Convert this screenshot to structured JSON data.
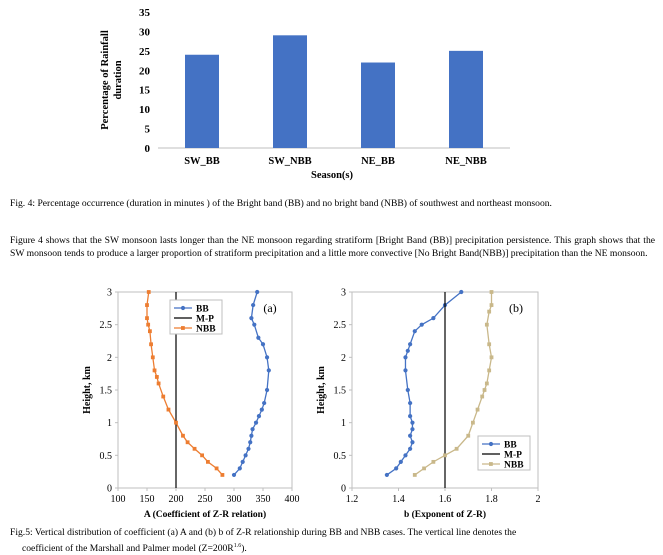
{
  "fig4": {
    "chart_data": {
      "type": "bar",
      "categories": [
        "SW_BB",
        "SW_NBB",
        "NE_BB",
        "NE_NBB"
      ],
      "values": [
        24,
        29,
        22,
        25
      ],
      "ylim": [
        0,
        35
      ],
      "yticks": [
        "0",
        "5",
        "10",
        "15",
        "20",
        "25",
        "30",
        "35"
      ],
      "ylabel_line1": "Percentage of Rainfall",
      "ylabel_line2": "duration",
      "xlabel": "Season(s)",
      "bar_color": "#4472C4",
      "grid": false
    },
    "caption": "Fig. 4: Percentage occurrence (duration in minutes ) of the Bright band (BB) and no bright band (NBB) of southwest and northeast monsoon.",
    "paragraph_1": "Figure 4 shows that the SW monsoon lasts longer than the NE monsoon regarding stratiform [Bright Band (BB)] precipitation persistence. This graph shows that the SW monsoon tends to produce a larger proportion of stratiform precipitation and a little more convective [No Bright Band(NBB)] precipitation than the NE monsoon."
  },
  "fig5a": {
    "chart_data": {
      "type": "line",
      "panel_label": "(a)",
      "xlim": [
        100,
        400
      ],
      "ylim": [
        0,
        3
      ],
      "xticks": [
        "100",
        "150",
        "200",
        "250",
        "300",
        "350",
        "400"
      ],
      "yticks": [
        "0",
        "0.5",
        "1",
        "1.5",
        "2",
        "2.5",
        "3"
      ],
      "xlabel": "A (Coefficient of Z-R relation)",
      "ylabel": "Height, km",
      "series": [
        {
          "name": "BB",
          "color": "#4472C4",
          "marker": "circle",
          "x": [
            300,
            310,
            315,
            320,
            325,
            328,
            330,
            332,
            338,
            343,
            348,
            352,
            357,
            360,
            357,
            350,
            342,
            335,
            330,
            333,
            340
          ],
          "y": [
            0.2,
            0.3,
            0.4,
            0.5,
            0.6,
            0.7,
            0.8,
            0.9,
            1.0,
            1.1,
            1.2,
            1.3,
            1.5,
            1.8,
            2.0,
            2.2,
            2.3,
            2.5,
            2.6,
            2.8,
            3.0
          ]
        },
        {
          "name": "M-P",
          "color": "#000000",
          "marker": "none",
          "x": [
            200,
            200
          ],
          "y": [
            0,
            3
          ]
        },
        {
          "name": "NBB",
          "color": "#ED7D31",
          "marker": "square",
          "x": [
            280,
            270,
            255,
            245,
            232,
            220,
            212,
            200,
            187,
            178,
            170,
            167,
            163,
            160,
            157,
            155,
            152,
            150,
            150,
            153
          ],
          "y": [
            0.2,
            0.3,
            0.4,
            0.5,
            0.6,
            0.7,
            0.8,
            1.0,
            1.2,
            1.4,
            1.6,
            1.7,
            1.8,
            2.0,
            2.2,
            2.4,
            2.5,
            2.6,
            2.8,
            3.0
          ]
        }
      ]
    }
  },
  "fig5b": {
    "chart_data": {
      "type": "line",
      "panel_label": "(b)",
      "xlim": [
        1.2,
        2.0
      ],
      "ylim": [
        0,
        3
      ],
      "xticks": [
        "1.2",
        "1.4",
        "1.6",
        "1.8",
        "2"
      ],
      "yticks": [
        "0",
        "0.5",
        "1",
        "1.5",
        "2",
        "2.5",
        "3"
      ],
      "xlabel": "b (Exponent of Z-R)",
      "ylabel": "Height, km",
      "series": [
        {
          "name": "BB",
          "color": "#4472C4",
          "marker": "circle",
          "x": [
            1.35,
            1.39,
            1.41,
            1.43,
            1.45,
            1.46,
            1.45,
            1.46,
            1.46,
            1.45,
            1.45,
            1.44,
            1.43,
            1.43,
            1.44,
            1.45,
            1.47,
            1.5,
            1.55,
            1.6,
            1.67
          ],
          "y": [
            0.2,
            0.3,
            0.4,
            0.5,
            0.6,
            0.7,
            0.8,
            0.9,
            1.0,
            1.1,
            1.3,
            1.5,
            1.8,
            2.0,
            2.1,
            2.2,
            2.4,
            2.5,
            2.6,
            2.8,
            3.0
          ]
        },
        {
          "name": "M-P",
          "color": "#000000",
          "marker": "none",
          "x": [
            1.6,
            1.6
          ],
          "y": [
            0,
            3
          ]
        },
        {
          "name": "NBB",
          "color": "#C9B88A",
          "marker": "square",
          "x": [
            1.47,
            1.51,
            1.55,
            1.6,
            1.65,
            1.7,
            1.72,
            1.74,
            1.76,
            1.77,
            1.78,
            1.79,
            1.8,
            1.79,
            1.78,
            1.79,
            1.8,
            1.8
          ],
          "y": [
            0.2,
            0.3,
            0.4,
            0.5,
            0.6,
            0.8,
            1.0,
            1.2,
            1.4,
            1.5,
            1.6,
            1.8,
            2.0,
            2.2,
            2.5,
            2.7,
            2.8,
            3.0
          ]
        }
      ]
    }
  },
  "fig5_caption_line1": "Fig.5: Vertical distribution of coefficient (a) A and (b) b of Z-R relationship during BB and NBB cases. The vertical line denotes the",
  "fig5_caption_line2_prefix": "coefficient of the Marshall and Palmer model (Z=200R",
  "fig5_caption_sup": "1.6",
  "fig5_caption_line2_suffix": ")."
}
